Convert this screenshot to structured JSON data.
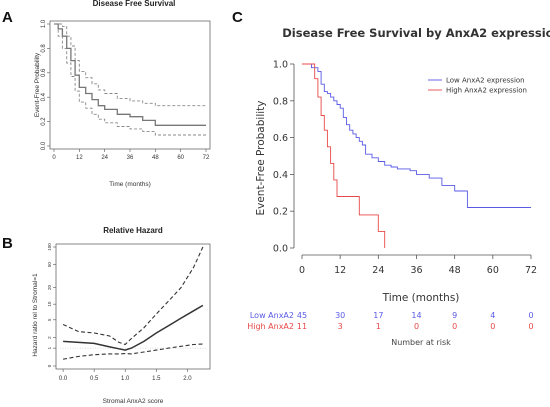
{
  "chart_data": [
    {
      "panel": "A",
      "type": "line",
      "title": "Disease Free Survival",
      "xlabel": "Time (months)",
      "ylabel": "Event-Free Probability",
      "xlim": [
        0,
        72
      ],
      "ylim": [
        0,
        1
      ],
      "xticks": [
        0,
        12,
        24,
        36,
        48,
        60,
        72
      ],
      "yticks": [
        0.0,
        0.2,
        0.4,
        0.6,
        0.8,
        1.0
      ],
      "series": [
        {
          "role": "estimate",
          "style": "solid",
          "x": [
            0,
            2,
            4,
            6,
            8,
            10,
            12,
            15,
            18,
            21,
            24,
            30,
            36,
            42,
            48,
            60,
            72
          ],
          "y": [
            1.0,
            0.96,
            0.9,
            0.8,
            0.7,
            0.58,
            0.48,
            0.43,
            0.38,
            0.33,
            0.3,
            0.26,
            0.24,
            0.21,
            0.17,
            0.17,
            0.17
          ]
        },
        {
          "role": "upper",
          "style": "dashed",
          "x": [
            0,
            2,
            4,
            6,
            8,
            10,
            12,
            15,
            18,
            21,
            24,
            30,
            36,
            42,
            48,
            60,
            72
          ],
          "y": [
            1.0,
            1.0,
            0.98,
            0.9,
            0.82,
            0.7,
            0.61,
            0.56,
            0.51,
            0.46,
            0.43,
            0.39,
            0.37,
            0.35,
            0.33,
            0.33,
            0.33
          ]
        },
        {
          "role": "lower",
          "style": "dashed",
          "x": [
            0,
            2,
            4,
            6,
            8,
            10,
            12,
            15,
            18,
            21,
            24,
            30,
            36,
            42,
            48,
            60,
            72
          ],
          "y": [
            1.0,
            0.9,
            0.8,
            0.68,
            0.57,
            0.45,
            0.36,
            0.31,
            0.26,
            0.22,
            0.19,
            0.16,
            0.14,
            0.12,
            0.09,
            0.09,
            0.09
          ]
        }
      ]
    },
    {
      "panel": "B",
      "type": "line",
      "title": "Relative Hazard",
      "xlabel": "Stromal AnxA2 score",
      "ylabel": "Hazard ratio rel to Stromal=1",
      "xlim": [
        -0.05,
        2.3
      ],
      "xticks": [
        "0.0",
        "0.5",
        "1.0",
        "1.5",
        "2.0"
      ],
      "yticks": [
        "0",
        "1",
        "2",
        "5",
        "10",
        "20",
        "50",
        "100"
      ],
      "series": [
        {
          "role": "estimate",
          "style": "solid",
          "x": [
            0.0,
            0.25,
            0.5,
            0.75,
            0.9,
            1.0,
            1.1,
            1.3,
            1.5,
            1.7,
            1.9,
            2.1,
            2.25
          ],
          "y": [
            1.6,
            1.5,
            1.4,
            1.1,
            0.95,
            0.85,
            1.0,
            1.6,
            2.6,
            3.8,
            5.4,
            7.5,
            9.5
          ]
        },
        {
          "role": "upper",
          "style": "dashed",
          "x": [
            0.0,
            0.25,
            0.5,
            0.75,
            0.9,
            1.0,
            1.1,
            1.3,
            1.5,
            1.7,
            1.9,
            2.1,
            2.25
          ],
          "y": [
            4.0,
            2.8,
            2.6,
            2.2,
            1.5,
            1.3,
            1.9,
            3.4,
            6.5,
            11.5,
            20,
            45,
            100
          ]
        },
        {
          "role": "lower",
          "style": "dashed",
          "x": [
            0.0,
            0.25,
            0.5,
            0.75,
            0.9,
            1.0,
            1.1,
            1.3,
            1.5,
            1.7,
            1.9,
            2.1,
            2.25
          ],
          "y": [
            0.3,
            0.45,
            0.55,
            0.6,
            0.6,
            0.62,
            0.6,
            0.72,
            0.85,
            1.0,
            1.15,
            1.3,
            1.35
          ]
        }
      ]
    },
    {
      "panel": "C",
      "type": "line",
      "title": "Disease Free Survival by AnxA2 expression",
      "xlabel": "Time (months)",
      "ylabel": "Event-Free Probability",
      "xlim": [
        0,
        72
      ],
      "ylim": [
        0,
        1
      ],
      "xticks": [
        0,
        12,
        24,
        36,
        48,
        60,
        72
      ],
      "yticks": [
        "0.0",
        "0.2",
        "0.4",
        "0.6",
        "0.8",
        "1.0"
      ],
      "legend": "top-right",
      "series": [
        {
          "name": "Low AnxA2 expression",
          "color": "#5a5ae6",
          "x": [
            0,
            2,
            3,
            5,
            6,
            7,
            8,
            9,
            10,
            11,
            12,
            13,
            14,
            15,
            16,
            17,
            18,
            19,
            20,
            22,
            24,
            26,
            28,
            30,
            32,
            34,
            36,
            40,
            44,
            48,
            52,
            60,
            72
          ],
          "y": [
            1.0,
            1.0,
            0.98,
            0.96,
            0.89,
            0.85,
            0.84,
            0.82,
            0.8,
            0.78,
            0.76,
            0.71,
            0.67,
            0.64,
            0.62,
            0.6,
            0.58,
            0.56,
            0.51,
            0.49,
            0.47,
            0.45,
            0.44,
            0.43,
            0.43,
            0.42,
            0.4,
            0.38,
            0.34,
            0.31,
            0.22,
            0.22,
            0.22
          ]
        },
        {
          "name": "High AnxA2 expression",
          "color": "#e84848",
          "x": [
            0,
            3,
            4,
            5,
            6,
            7,
            8,
            9,
            10,
            11,
            12,
            14,
            18,
            20,
            24,
            26
          ],
          "y": [
            1.0,
            1.0,
            0.92,
            0.82,
            0.72,
            0.64,
            0.55,
            0.46,
            0.37,
            0.28,
            0.28,
            0.28,
            0.18,
            0.18,
            0.09,
            0.0
          ]
        }
      ],
      "risk_table": {
        "title": "Number at risk",
        "times": [
          0,
          12,
          24,
          36,
          48,
          60,
          72
        ],
        "rows": [
          {
            "label": "Low AnxA2",
            "color": "#5a5ae6",
            "counts": [
              45,
              30,
              17,
              14,
              9,
              4,
              0
            ]
          },
          {
            "label": "High AnxA2",
            "color": "#e84848",
            "counts": [
              11,
              3,
              1,
              0,
              0,
              0,
              0
            ]
          }
        ]
      }
    }
  ],
  "panel_labels": {
    "a": "A",
    "b": "B",
    "c": "C"
  }
}
